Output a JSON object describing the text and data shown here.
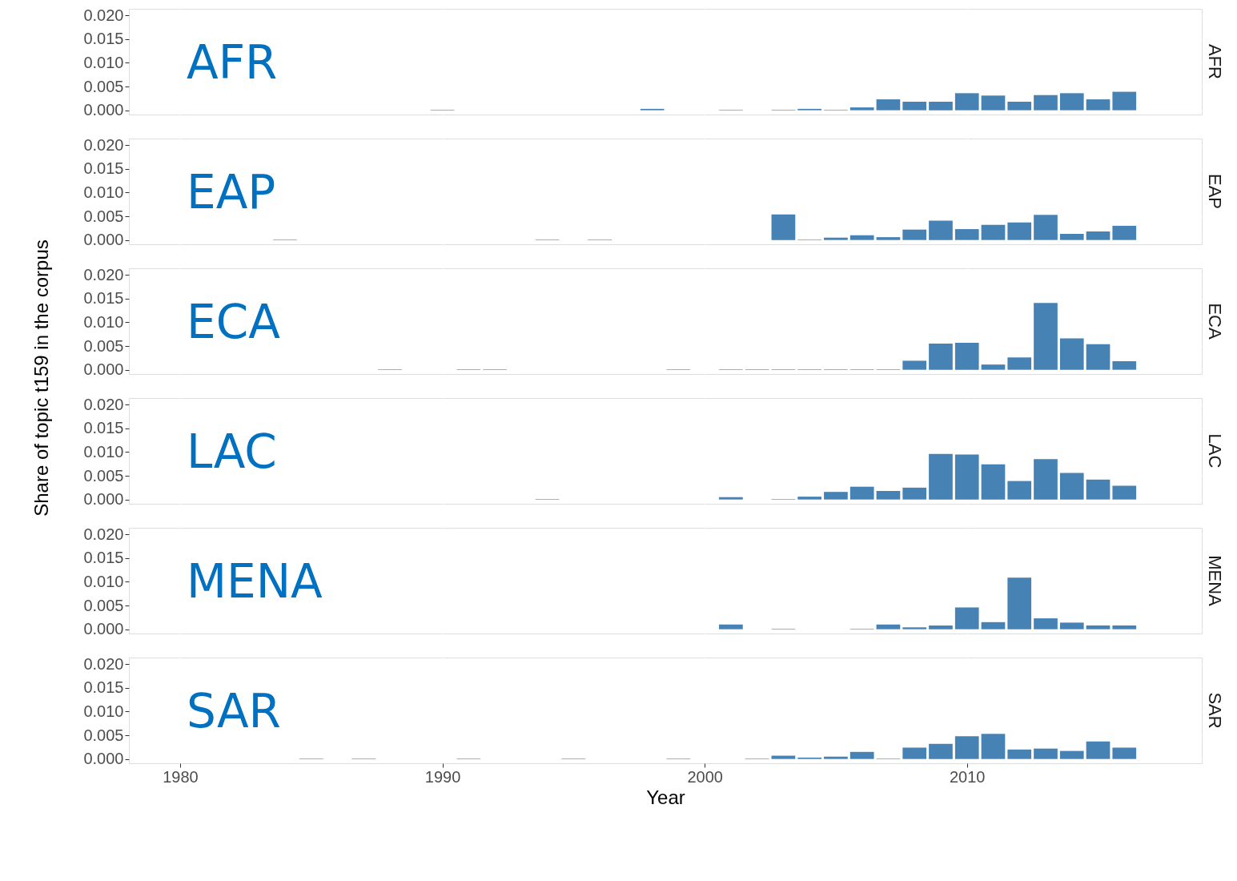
{
  "chart_data": [
    {
      "type": "bar",
      "title": "AFR",
      "annotations": [
        "AFR"
      ],
      "tick_labels": "y",
      "grid": true,
      "color": "#4682b4",
      "x": [
        1990,
        1998,
        2001,
        2003,
        2004,
        2005,
        2006,
        2007,
        2008,
        2009,
        2010,
        2011,
        2012,
        2013,
        2014,
        2015,
        2016
      ],
      "values": [
        0.0001,
        0.0003,
        0.0001,
        0.0001,
        0.0003,
        0.0001,
        0.0006,
        0.0023,
        0.0018,
        0.0018,
        0.0036,
        0.0031,
        0.0018,
        0.0032,
        0.0036,
        0.0023,
        0.0039
      ],
      "xlim": [
        1978.2,
        2018.8
      ],
      "xticks": [
        1980,
        1990,
        2000,
        2010
      ],
      "ylim": [
        -0.0009,
        0.0214
      ],
      "yticks": [
        {
          "value": 0,
          "label": "0.000"
        },
        {
          "value": 0.005,
          "label": "0.005"
        },
        {
          "value": 0.01,
          "label": "0.010"
        },
        {
          "value": 0.015,
          "label": "0.015"
        },
        {
          "value": 0.02,
          "label": "0.020"
        }
      ]
    },
    {
      "type": "bar",
      "title": "EAP",
      "annotations": [
        "EAP"
      ],
      "tick_labels": "y",
      "grid": true,
      "color": "#4682b4",
      "x": [
        1984,
        1994,
        1996,
        2003,
        2004,
        2005,
        2006,
        2007,
        2008,
        2009,
        2010,
        2011,
        2012,
        2013,
        2014,
        2015,
        2016
      ],
      "values": [
        0.0001,
        0.0001,
        0.0001,
        0.0054,
        0.0001,
        0.0005,
        0.001,
        0.0006,
        0.0022,
        0.0041,
        0.0023,
        0.0032,
        0.0037,
        0.0053,
        0.0013,
        0.0018,
        0.003
      ],
      "xlim": [
        1978.2,
        2018.8
      ],
      "xticks": [
        1980,
        1990,
        2000,
        2010
      ],
      "ylim": [
        -0.0009,
        0.0214
      ],
      "yticks": [
        {
          "value": 0,
          "label": "0.000"
        },
        {
          "value": 0.005,
          "label": "0.005"
        },
        {
          "value": 0.01,
          "label": "0.010"
        },
        {
          "value": 0.015,
          "label": "0.015"
        },
        {
          "value": 0.02,
          "label": "0.020"
        }
      ]
    },
    {
      "type": "bar",
      "title": "ECA",
      "annotations": [
        "ECA"
      ],
      "tick_labels": "y",
      "grid": true,
      "color": "#4682b4",
      "ylabel": "Share of topic t159 in the corpus",
      "x": [
        1988,
        1991,
        1992,
        1999,
        2001,
        2002,
        2003,
        2004,
        2005,
        2006,
        2007,
        2008,
        2009,
        2010,
        2011,
        2012,
        2013,
        2014,
        2015,
        2016
      ],
      "values": [
        0.0001,
        0.0001,
        0.0001,
        0.0001,
        0.0001,
        0.0001,
        0.0001,
        0.0001,
        0.0001,
        0.0001,
        0.0001,
        0.0019,
        0.0055,
        0.0057,
        0.0011,
        0.0026,
        0.0141,
        0.0066,
        0.0054,
        0.0018
      ],
      "xlim": [
        1978.2,
        2018.8
      ],
      "xticks": [
        1980,
        1990,
        2000,
        2010
      ],
      "ylim": [
        -0.0009,
        0.0214
      ],
      "yticks": [
        {
          "value": 0,
          "label": "0.000"
        },
        {
          "value": 0.005,
          "label": "0.005"
        },
        {
          "value": 0.01,
          "label": "0.010"
        },
        {
          "value": 0.015,
          "label": "0.015"
        },
        {
          "value": 0.02,
          "label": "0.020"
        }
      ]
    },
    {
      "type": "bar",
      "title": "LAC",
      "annotations": [
        "LAC"
      ],
      "tick_labels": "y",
      "grid": true,
      "color": "#4682b4",
      "x": [
        1994,
        2001,
        2003,
        2004,
        2005,
        2006,
        2007,
        2008,
        2009,
        2010,
        2011,
        2012,
        2013,
        2014,
        2015,
        2016
      ],
      "values": [
        0.0001,
        0.0005,
        0.0001,
        0.0006,
        0.0016,
        0.0027,
        0.0018,
        0.0025,
        0.0096,
        0.0095,
        0.0074,
        0.0039,
        0.0085,
        0.0056,
        0.0042,
        0.0029
      ],
      "xlim": [
        1978.2,
        2018.8
      ],
      "xticks": [
        1980,
        1990,
        2000,
        2010
      ],
      "ylim": [
        -0.0009,
        0.0214
      ],
      "yticks": [
        {
          "value": 0,
          "label": "0.000"
        },
        {
          "value": 0.005,
          "label": "0.005"
        },
        {
          "value": 0.01,
          "label": "0.010"
        },
        {
          "value": 0.015,
          "label": "0.015"
        },
        {
          "value": 0.02,
          "label": "0.020"
        }
      ]
    },
    {
      "type": "bar",
      "title": "MENA",
      "annotations": [
        "MENA"
      ],
      "tick_labels": "y",
      "grid": true,
      "color": "#4682b4",
      "x": [
        2001,
        2003,
        2006,
        2007,
        2008,
        2009,
        2010,
        2011,
        2012,
        2013,
        2014,
        2015,
        2016
      ],
      "values": [
        0.001,
        0.0001,
        0.0001,
        0.001,
        0.0004,
        0.0008,
        0.0046,
        0.0015,
        0.0109,
        0.0023,
        0.0014,
        0.0008,
        0.0008
      ],
      "xlim": [
        1978.2,
        2018.8
      ],
      "xticks": [
        1980,
        1990,
        2000,
        2010
      ],
      "ylim": [
        -0.0009,
        0.0214
      ],
      "yticks": [
        {
          "value": 0,
          "label": "0.000"
        },
        {
          "value": 0.005,
          "label": "0.005"
        },
        {
          "value": 0.01,
          "label": "0.010"
        },
        {
          "value": 0.015,
          "label": "0.015"
        },
        {
          "value": 0.02,
          "label": "0.020"
        }
      ]
    },
    {
      "type": "bar",
      "title": "SAR",
      "annotations": [
        "SAR"
      ],
      "grid": true,
      "color": "#4682b4",
      "xlabel": "Year",
      "x": [
        1985,
        1987,
        1991,
        1995,
        1999,
        2002,
        2003,
        2004,
        2005,
        2006,
        2007,
        2008,
        2009,
        2010,
        2011,
        2012,
        2013,
        2014,
        2015,
        2016
      ],
      "values": [
        0.0001,
        0.0001,
        0.0001,
        0.0001,
        0.0001,
        0.0001,
        0.0007,
        0.0003,
        0.0005,
        0.0015,
        0.0001,
        0.0024,
        0.0032,
        0.0048,
        0.0053,
        0.002,
        0.0022,
        0.0017,
        0.0037,
        0.0024
      ],
      "xlim": [
        1978.2,
        2018.8
      ],
      "xticks": [
        1980,
        1990,
        2000,
        2010
      ],
      "ylim": [
        -0.0009,
        0.0214
      ],
      "yticks": [
        {
          "value": 0,
          "label": "0.000"
        },
        {
          "value": 0.005,
          "label": "0.005"
        },
        {
          "value": 0.01,
          "label": "0.010"
        },
        {
          "value": 0.015,
          "label": "0.015"
        },
        {
          "value": 0.02,
          "label": "0.020"
        }
      ]
    }
  ]
}
